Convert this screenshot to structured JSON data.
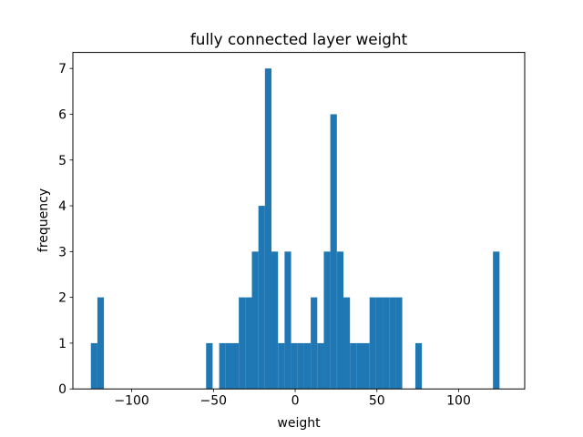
{
  "chart_data": {
    "type": "bar",
    "title": "fully connected layer weight",
    "xlabel": "weight",
    "ylabel": "frequency",
    "xlim": [
      -136.0,
      140.4
    ],
    "ylim": [
      0,
      7.35
    ],
    "grid": false,
    "bar_color": "#1f77b4",
    "bin_width": 4,
    "x_ticks": [
      -100,
      -50,
      0,
      50,
      100
    ],
    "x_tick_labels": [
      "−100",
      "−50",
      "0",
      "50",
      "100"
    ],
    "y_ticks": [
      0,
      1,
      2,
      3,
      4,
      5,
      6,
      7
    ],
    "y_tick_labels": [
      "0",
      "1",
      "2",
      "3",
      "4",
      "5",
      "6",
      "7"
    ],
    "bins": [
      {
        "x": -123.0,
        "value": 1
      },
      {
        "x": -119.0,
        "value": 2
      },
      {
        "x": -52.5,
        "value": 1
      },
      {
        "x": -44.5,
        "value": 1
      },
      {
        "x": -40.5,
        "value": 1
      },
      {
        "x": -36.5,
        "value": 1
      },
      {
        "x": -32.5,
        "value": 2
      },
      {
        "x": -28.5,
        "value": 2
      },
      {
        "x": -24.5,
        "value": 3
      },
      {
        "x": -20.5,
        "value": 4
      },
      {
        "x": -16.5,
        "value": 7
      },
      {
        "x": -12.5,
        "value": 3
      },
      {
        "x": -8.5,
        "value": 1
      },
      {
        "x": -4.5,
        "value": 3
      },
      {
        "x": -0.5,
        "value": 1
      },
      {
        "x": 3.5,
        "value": 1
      },
      {
        "x": 7.5,
        "value": 1
      },
      {
        "x": 11.5,
        "value": 2
      },
      {
        "x": 15.5,
        "value": 1
      },
      {
        "x": 19.5,
        "value": 3
      },
      {
        "x": 23.5,
        "value": 6
      },
      {
        "x": 27.5,
        "value": 3
      },
      {
        "x": 31.5,
        "value": 2
      },
      {
        "x": 35.5,
        "value": 1
      },
      {
        "x": 39.5,
        "value": 1
      },
      {
        "x": 43.5,
        "value": 1
      },
      {
        "x": 47.5,
        "value": 2
      },
      {
        "x": 51.5,
        "value": 2
      },
      {
        "x": 55.5,
        "value": 2
      },
      {
        "x": 59.5,
        "value": 2
      },
      {
        "x": 63.5,
        "value": 2
      },
      {
        "x": 75.5,
        "value": 1
      },
      {
        "x": 123.0,
        "value": 3
      }
    ]
  }
}
